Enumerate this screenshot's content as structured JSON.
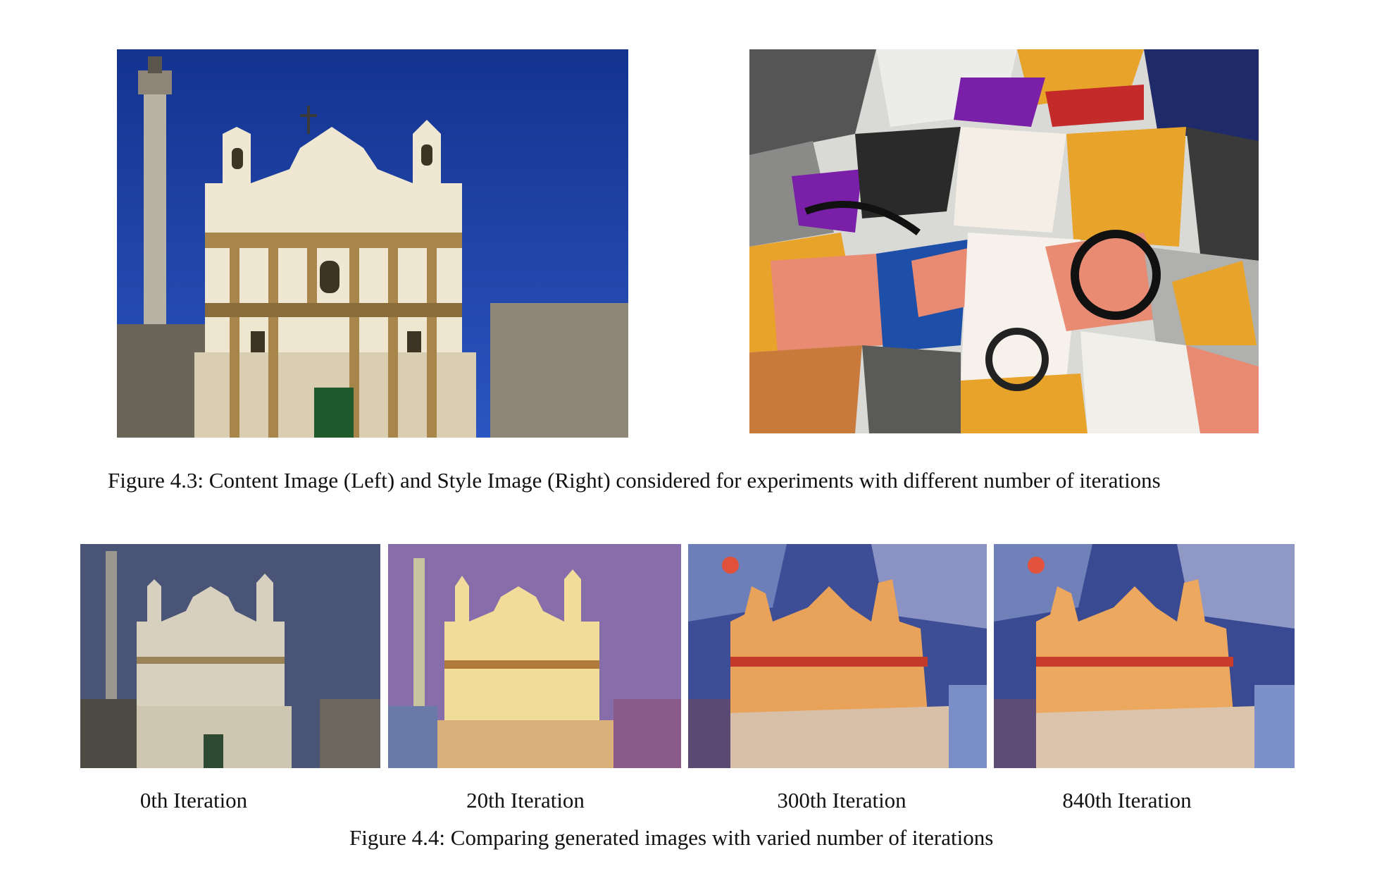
{
  "figure_4_3": {
    "caption": "Figure 4.3: Content Image (Left)  and Style Image (Right)  considered for experiments with different number of iterations",
    "left_image": "church-facade-photo",
    "right_image": "cubist-abstract-painting"
  },
  "figure_4_4": {
    "caption": "Figure 4.4: Comparing generated images with varied number of iterations",
    "panels": [
      {
        "label": "0th Iteration"
      },
      {
        "label": "20th Iteration"
      },
      {
        "label": "300th Iteration"
      },
      {
        "label": "840th Iteration"
      }
    ]
  },
  "colors": {
    "sky": "#1b3a9e",
    "stone": "#f2ead8",
    "ochre": "#b08a4a",
    "style_orange": "#e8a42a",
    "style_salmon": "#e98a72",
    "style_purple": "#7a1fa8",
    "style_blue": "#1e4fa8"
  }
}
